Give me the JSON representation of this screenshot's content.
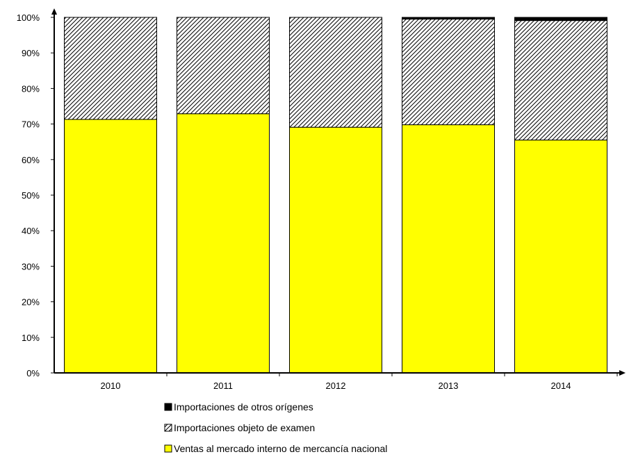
{
  "chart_data": {
    "type": "bar",
    "stacked": true,
    "categories": [
      "2010",
      "2011",
      "2012",
      "2013",
      "2014"
    ],
    "series": [
      {
        "name": "Ventas al mercado interno de mercancía nacional",
        "values": [
          71.3,
          72.9,
          69.1,
          69.8,
          65.5
        ],
        "color": "#ffff00",
        "pattern": "solid"
      },
      {
        "name": "Importaciones objeto de examen",
        "values": [
          28.7,
          27.1,
          30.9,
          29.7,
          33.6
        ],
        "color": "#ffffff",
        "pattern": "diagonal-hatch"
      },
      {
        "name": "Importaciones de otros orígenes",
        "values": [
          0.0,
          0.0,
          0.0,
          0.5,
          0.9
        ],
        "color": "#000000",
        "pattern": "solid"
      }
    ],
    "yticks": [
      "0%",
      "10%",
      "20%",
      "30%",
      "40%",
      "50%",
      "60%",
      "70%",
      "80%",
      "90%",
      "100%"
    ],
    "ylim": [
      0,
      100
    ],
    "grid": false,
    "legend_position": "bottom",
    "legend_order": [
      2,
      1,
      0
    ]
  }
}
